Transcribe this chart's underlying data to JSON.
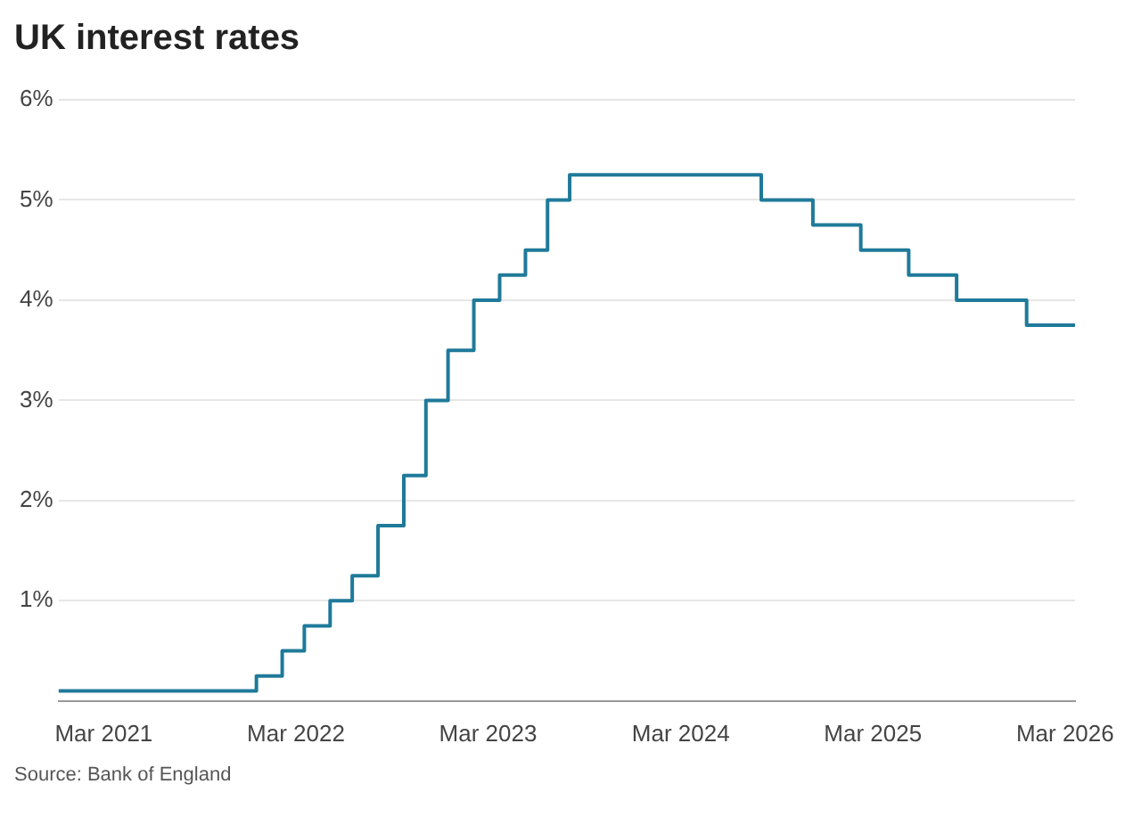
{
  "chart_data": {
    "type": "step",
    "title": "UK interest rates",
    "x": [
      "2020-12-05",
      "2021-12-16",
      "2022-02-03",
      "2022-03-17",
      "2022-05-05",
      "2022-06-16",
      "2022-08-04",
      "2022-09-22",
      "2022-11-03",
      "2022-12-15",
      "2023-02-02",
      "2023-03-23",
      "2023-05-11",
      "2023-06-22",
      "2023-08-03",
      "2024-08-01",
      "2024-11-07",
      "2025-02-06",
      "2025-05-08",
      "2025-08-07",
      "2025-12-18",
      "2026-03-20"
    ],
    "values": [
      0.1,
      0.25,
      0.5,
      0.75,
      1,
      1.25,
      1.75,
      2.25,
      3,
      3.5,
      4,
      4.25,
      4.5,
      5,
      5.25,
      5,
      4.75,
      4.5,
      4.25,
      4,
      3.75,
      3.75
    ],
    "color": "#1f7a99",
    "xlim": [
      "2020-12-05",
      "2026-03-20"
    ],
    "xticks": [
      {
        "value": "2021-03-01",
        "label": "Mar 2021"
      },
      {
        "value": "2022-03-01",
        "label": "Mar 2022"
      },
      {
        "value": "2023-03-01",
        "label": "Mar 2023"
      },
      {
        "value": "2024-03-01",
        "label": "Mar 2024"
      },
      {
        "value": "2025-03-01",
        "label": "Mar 2025"
      },
      {
        "value": "2026-03-01",
        "label": "Mar 2026"
      }
    ],
    "ylim": [
      0,
      6
    ],
    "yticks": [
      {
        "value": 1,
        "label": "1%"
      },
      {
        "value": 2,
        "label": "2%"
      },
      {
        "value": 3,
        "label": "3%"
      },
      {
        "value": 4,
        "label": "4%"
      },
      {
        "value": 5,
        "label": "5%"
      },
      {
        "value": 6,
        "label": "6%"
      }
    ],
    "grid": "y",
    "legend": false,
    "marker": "none",
    "line_style": "solid",
    "annotations": [
      "Source: Bank of England"
    ]
  }
}
